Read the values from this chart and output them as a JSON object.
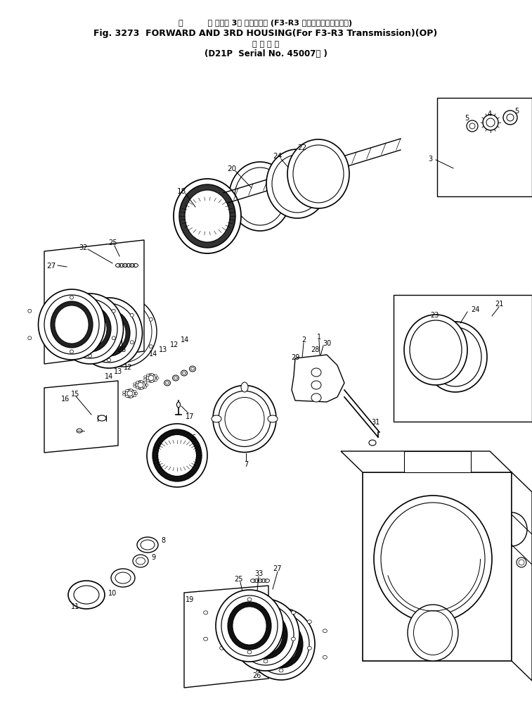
{
  "title_line1": "前         速および 3速 ハウジング （F3-R3 トランスミッション用）",
  "title_line2": "Fig. 3273  FORWARD AND 3RD HOUSING\\(For F3-R3 Transmission\\)\\(OP\\)",
  "title_line3": "適 用 号 機",
  "title_line4": "\\(D21P  Serial No. 45007～ \\)",
  "bg_color": "#ffffff",
  "line_color": "#000000",
  "fig_width": 7.57,
  "fig_height": 10.04,
  "dpi": 100
}
